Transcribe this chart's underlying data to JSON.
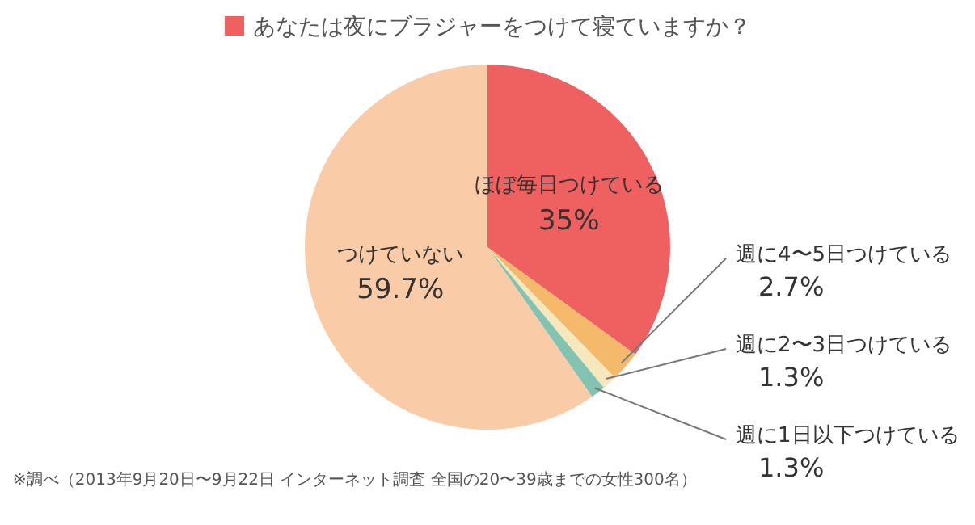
{
  "chart_data": {
    "type": "pie",
    "title": "あなたは夜にブラジャーをつけて寝ていますか？",
    "categories": [
      "ほぼ毎日つけている",
      "週に4〜5日つけている",
      "週に2〜3日つけている",
      "週に1日以下つけている",
      "つけていない"
    ],
    "values": [
      35,
      2.7,
      1.3,
      1.3,
      59.7
    ],
    "value_labels": [
      "35%",
      "2.7%",
      "1.3%",
      "1.3%",
      "59.7%"
    ],
    "colors": [
      "#ef6161",
      "#f4b96b",
      "#f6e7bd",
      "#82c3b1",
      "#f9cca7"
    ],
    "annotations": [
      "※調べ（2013年9月20日〜9月22日 インターネット調査 全国の20〜39歳までの女性300名）"
    ],
    "legend": false
  }
}
